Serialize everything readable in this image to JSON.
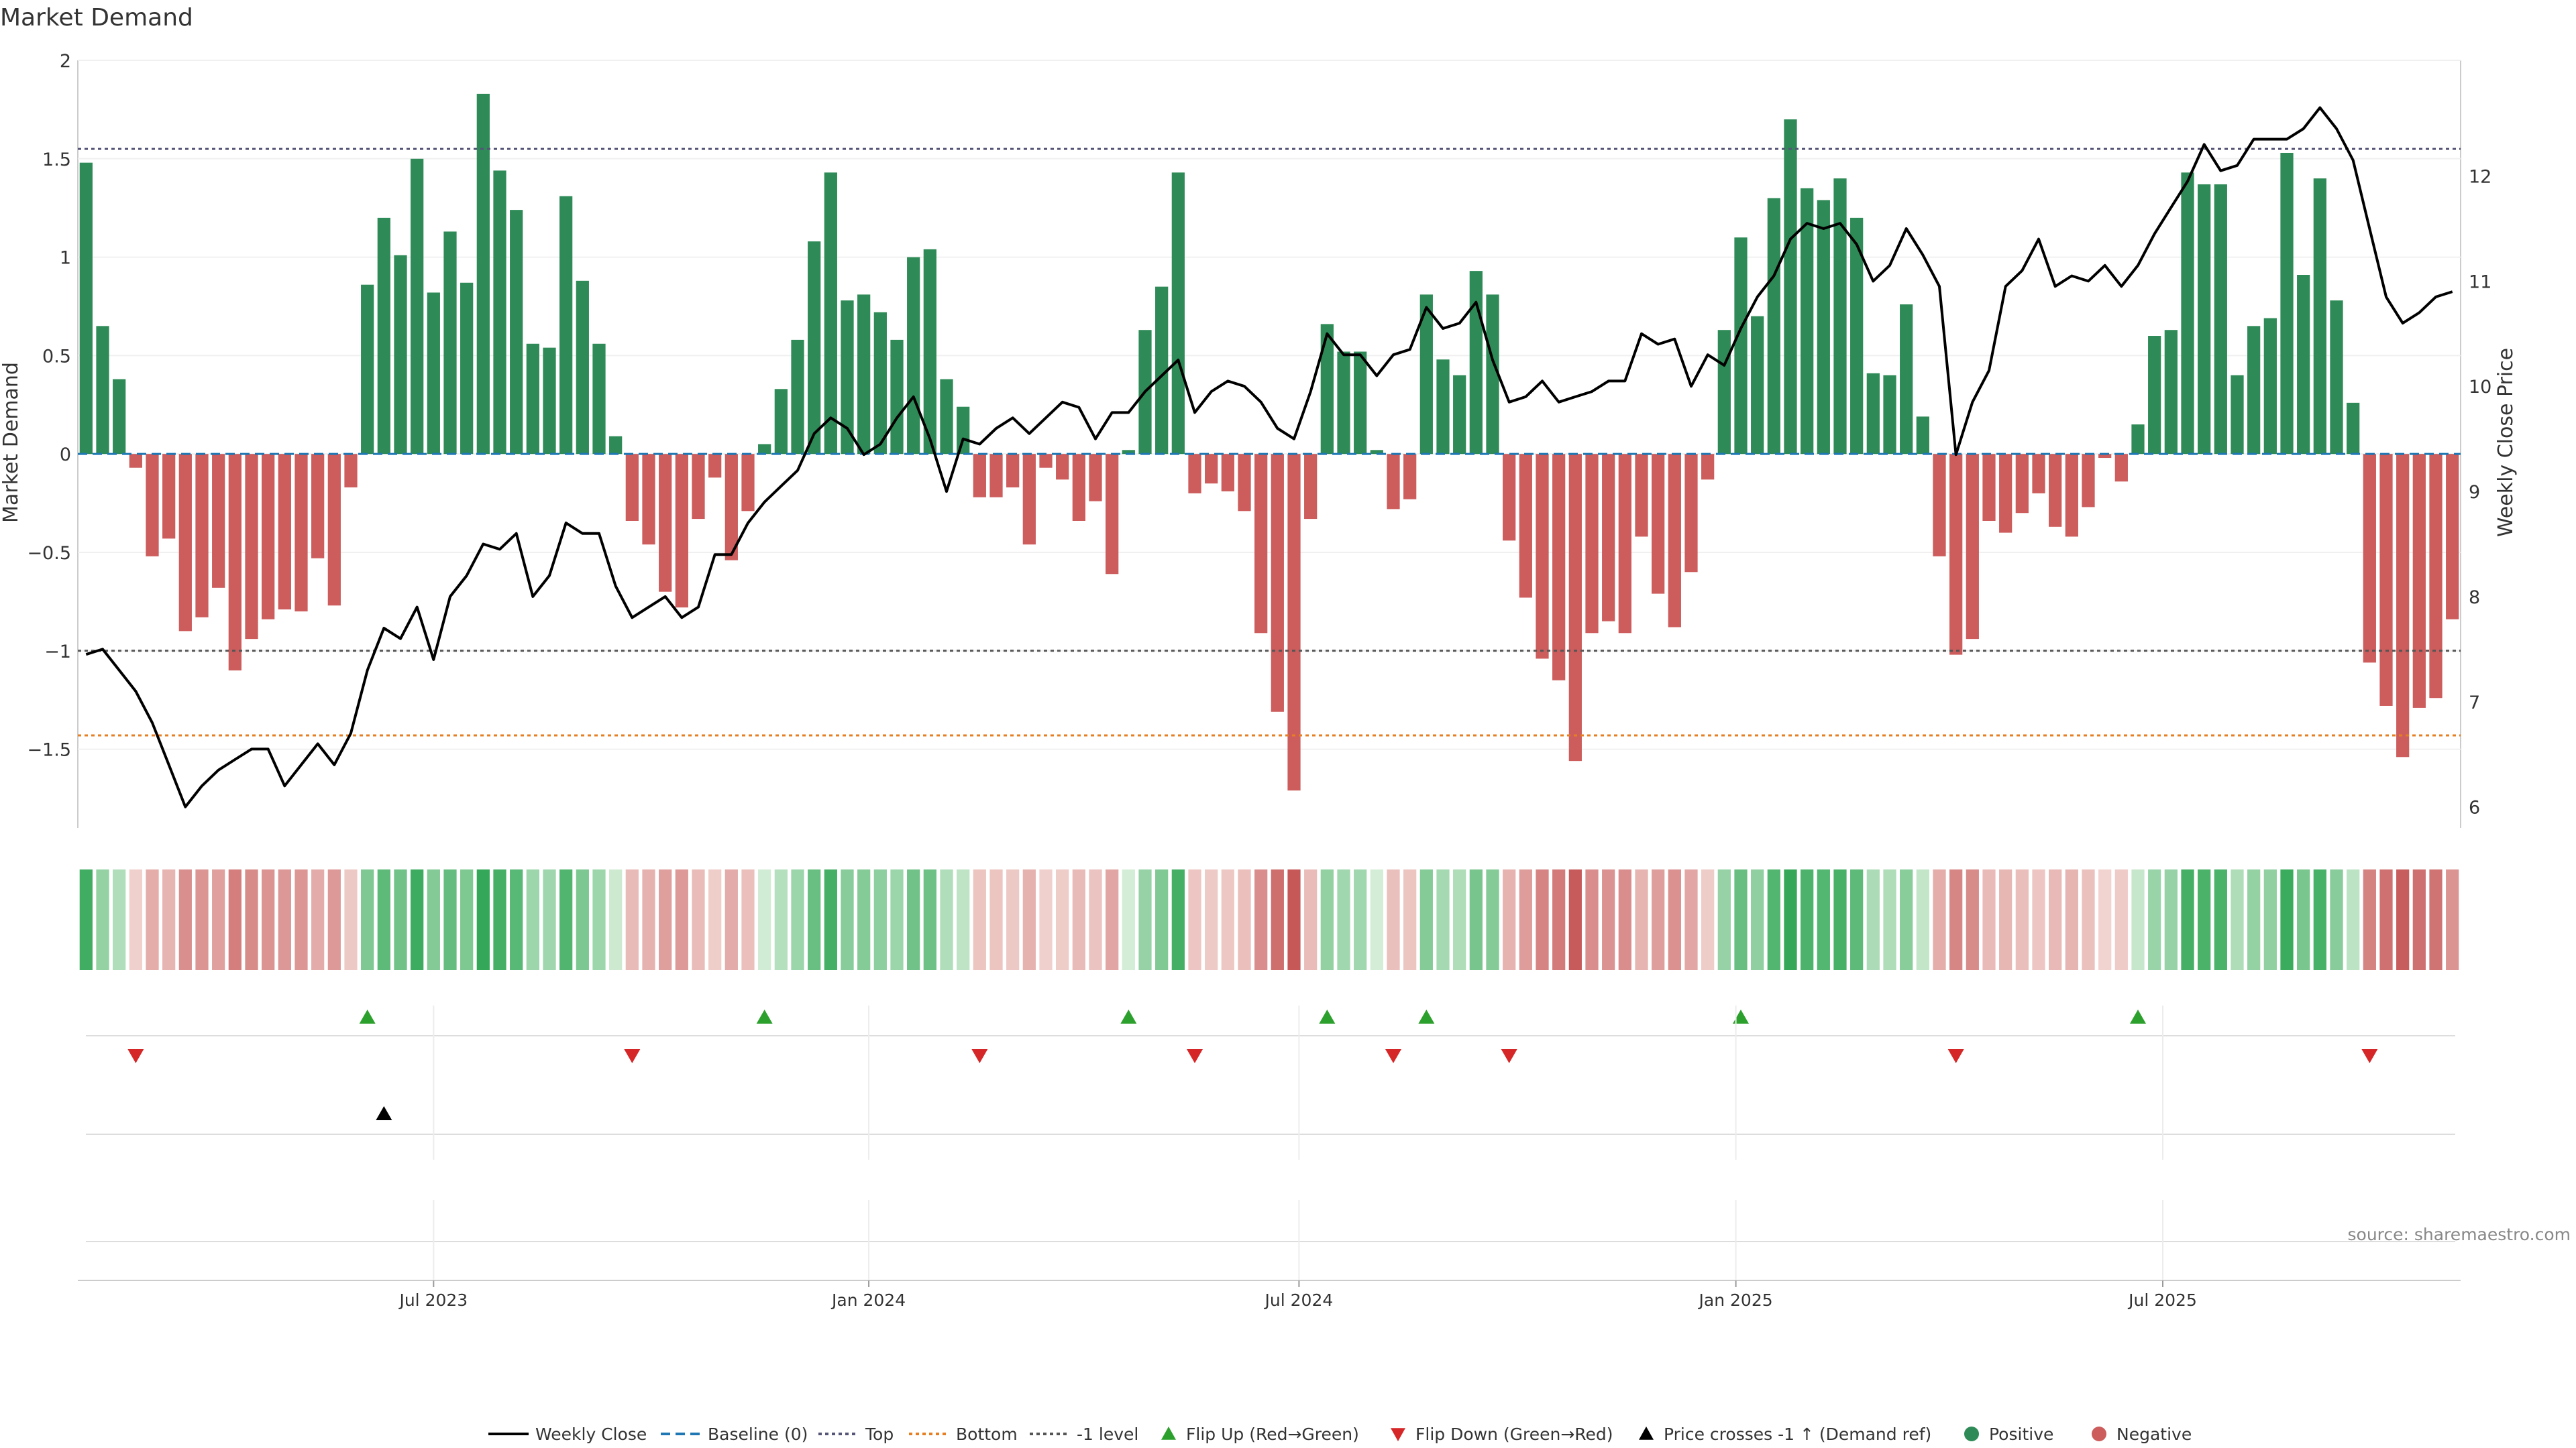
{
  "chart_data": {
    "type": "bar",
    "title": "Market Demand",
    "ylabel": "Market Demand",
    "y2label": "Weekly Close Price",
    "ylim": [
      -1.9,
      2.0
    ],
    "y2lim": [
      5.8,
      13.1
    ],
    "yticks": [
      2,
      1.5,
      1,
      0.5,
      0,
      -0.5,
      -1,
      -1.5
    ],
    "y2ticks": [
      12,
      11,
      10,
      9,
      8,
      7,
      6
    ],
    "levels": {
      "top": 1.55,
      "bottom": -1.43,
      "minus_one": -1.0
    },
    "xticks": [
      {
        "label": "Jul 2023",
        "index": 21.5
      },
      {
        "label": "Jan 2024",
        "index": 47.8
      },
      {
        "label": "Jul 2024",
        "index": 73.8
      },
      {
        "label": "Jan 2025",
        "index": 100.2
      },
      {
        "label": "Jul 2025",
        "index": 126.0
      }
    ],
    "demand": [
      1.48,
      0.65,
      0.38,
      -0.07,
      -0.52,
      -0.43,
      -0.9,
      -0.83,
      -0.68,
      -1.1,
      -0.94,
      -0.84,
      -0.79,
      -0.8,
      -0.53,
      -0.77,
      -0.17,
      0.86,
      1.2,
      1.01,
      1.5,
      0.82,
      1.13,
      0.87,
      1.83,
      1.44,
      1.24,
      0.56,
      0.54,
      1.31,
      0.88,
      0.56,
      0.09,
      -0.34,
      -0.46,
      -0.7,
      -0.78,
      -0.33,
      -0.12,
      -0.54,
      -0.29,
      0.05,
      0.33,
      0.58,
      1.08,
      1.43,
      0.78,
      0.81,
      0.72,
      0.58,
      1.0,
      1.04,
      0.38,
      0.24,
      -0.22,
      -0.22,
      -0.17,
      -0.46,
      -0.07,
      -0.13,
      -0.34,
      -0.24,
      -0.61,
      0.02,
      0.63,
      0.85,
      1.43,
      -0.2,
      -0.15,
      -0.19,
      -0.29,
      -0.91,
      -1.31,
      -1.71,
      -0.33,
      0.66,
      0.52,
      0.52,
      0.02,
      -0.28,
      -0.23,
      0.81,
      0.48,
      0.4,
      0.93,
      0.81,
      -0.44,
      -0.73,
      -1.04,
      -1.15,
      -1.56,
      -0.91,
      -0.85,
      -0.91,
      -0.42,
      -0.71,
      -0.88,
      -0.6,
      -0.13,
      0.63,
      1.1,
      0.7,
      1.3,
      1.7,
      1.35,
      1.29,
      1.4,
      1.2,
      0.41,
      0.4,
      0.76,
      0.19,
      -0.52,
      -1.02,
      -0.94,
      -0.34,
      -0.4,
      -0.3,
      -0.2,
      -0.37,
      -0.42,
      -0.27,
      -0.02,
      -0.14,
      0.15,
      0.6,
      0.63,
      1.43,
      1.37,
      1.37,
      0.4,
      0.65,
      0.69,
      1.53,
      0.91,
      1.4,
      0.78,
      0.26,
      -1.06,
      -1.28,
      -1.54,
      -1.29,
      -1.24,
      -0.84
    ],
    "weekly_close": [
      7.45,
      7.5,
      7.3,
      7.1,
      6.8,
      6.4,
      6.0,
      6.2,
      6.35,
      6.45,
      6.55,
      6.55,
      6.2,
      6.4,
      6.6,
      6.4,
      6.7,
      7.3,
      7.7,
      7.6,
      7.9,
      7.4,
      8.0,
      8.2,
      8.5,
      8.45,
      8.6,
      8.0,
      8.2,
      8.7,
      8.6,
      8.6,
      8.1,
      7.8,
      7.9,
      8.0,
      7.8,
      7.9,
      8.4,
      8.4,
      8.7,
      8.9,
      9.05,
      9.2,
      9.55,
      9.7,
      9.6,
      9.35,
      9.45,
      9.7,
      9.9,
      9.5,
      9.0,
      9.5,
      9.45,
      9.6,
      9.7,
      9.55,
      9.7,
      9.85,
      9.8,
      9.5,
      9.75,
      9.75,
      9.95,
      10.1,
      10.25,
      9.75,
      9.95,
      10.05,
      10.0,
      9.85,
      9.6,
      9.5,
      9.95,
      10.5,
      10.3,
      10.3,
      10.1,
      10.3,
      10.35,
      10.75,
      10.55,
      10.6,
      10.8,
      10.25,
      9.85,
      9.9,
      10.05,
      9.85,
      9.9,
      9.95,
      10.05,
      10.05,
      10.5,
      10.4,
      10.45,
      10.0,
      10.3,
      10.2,
      10.55,
      10.85,
      11.05,
      11.4,
      11.55,
      11.5,
      11.55,
      11.35,
      11.0,
      11.15,
      11.5,
      11.25,
      10.95,
      9.35,
      9.85,
      10.15,
      10.95,
      11.1,
      11.4,
      10.95,
      11.05,
      11.0,
      11.15,
      10.95,
      11.15,
      11.45,
      11.7,
      11.95,
      12.3,
      12.05,
      12.1,
      12.35,
      12.35,
      12.35,
      12.45,
      12.65,
      12.45,
      12.15,
      11.5,
      10.85,
      10.6,
      10.7,
      10.85,
      10.9
    ],
    "flip_up": [
      17,
      41,
      63,
      75,
      81,
      100,
      124
    ],
    "flip_down": [
      3,
      33,
      54,
      67,
      79,
      86,
      113,
      138
    ],
    "cross_up": [
      18
    ]
  },
  "colors": {
    "positive": "#2e8b57",
    "negative": "#cd5c5c",
    "price": "#000000",
    "baseline": "#1f77b4",
    "top": "#555577",
    "bottom": "#e67e22",
    "minus_one": "#555555",
    "flip_up": "#2ca02c",
    "flip_down": "#d62728"
  },
  "source": "source: sharemaestro.com",
  "legend": {
    "weekly_close": "Weekly Close",
    "baseline": "Baseline (0)",
    "top": "Top",
    "bottom": "Bottom",
    "minus_one": "-1 level",
    "flip_up": "Flip Up (Red→Green)",
    "flip_down": "Flip Down (Green→Red)",
    "cross_up": "Price crosses -1 ↑ (Demand ref)",
    "positive": "Positive",
    "negative": "Negative"
  }
}
